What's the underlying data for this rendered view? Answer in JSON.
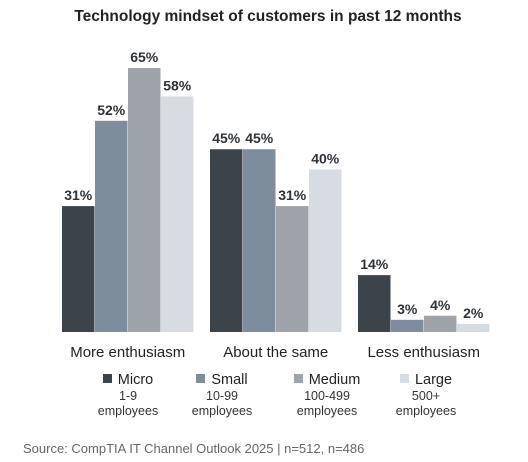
{
  "chart_data": {
    "type": "bar",
    "title": "Technology mindset of customers in past 12 months",
    "xlabel": "",
    "ylabel": "",
    "ylim": [
      0,
      70
    ],
    "grid": false,
    "legend_position": "bottom",
    "categories": [
      "More enthusiasm",
      "About the same",
      "Less enthusiasm"
    ],
    "series": [
      {
        "name": "Micro",
        "sub": [
          "1-9",
          "employees"
        ],
        "color": "#3b434b",
        "values": [
          31,
          45,
          14
        ],
        "labels": [
          "31%",
          "45%",
          "14%"
        ]
      },
      {
        "name": "Small",
        "sub": [
          "10-99",
          "employees"
        ],
        "color": "#7d8d9b",
        "values": [
          52,
          45,
          3
        ],
        "labels": [
          "52%",
          "45%",
          "3%"
        ]
      },
      {
        "name": "Medium",
        "sub": [
          "100-499",
          "employees"
        ],
        "color": "#9ea2a9",
        "values": [
          65,
          31,
          4
        ],
        "labels": [
          "65%",
          "31%",
          "4%"
        ]
      },
      {
        "name": "Large",
        "sub": [
          "500+",
          "employees"
        ],
        "color": "#d6dce1",
        "values": [
          58,
          40,
          2
        ],
        "labels": [
          "58%",
          "40%",
          "2%"
        ]
      }
    ]
  },
  "source": "Source: CompTIA IT Channel Outlook 2025 | n=512, n=486"
}
